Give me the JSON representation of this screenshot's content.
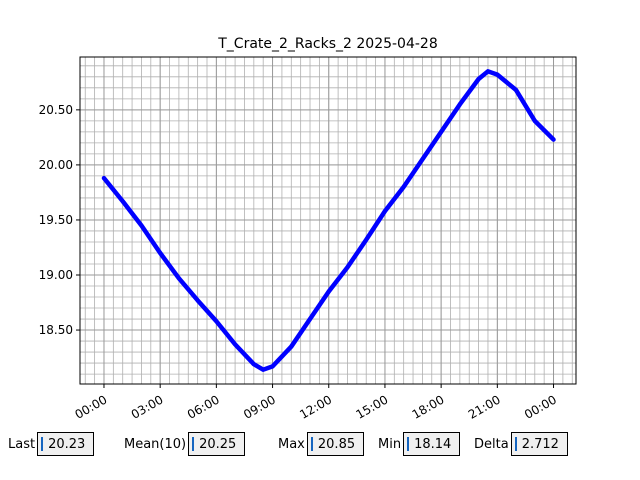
{
  "chart_data": {
    "type": "line",
    "title": "T_Crate_2_Racks_2 2025-04-28",
    "x": [
      0,
      1,
      2,
      3,
      4,
      5,
      6,
      7,
      8,
      8.5,
      9,
      10,
      11,
      12,
      13,
      14,
      15,
      16,
      17,
      18,
      19,
      20,
      20.5,
      21,
      22,
      23,
      24
    ],
    "series": [
      {
        "color": "#0000ff",
        "values": [
          19.88,
          19.67,
          19.45,
          19.2,
          18.97,
          18.77,
          18.58,
          18.37,
          18.19,
          18.14,
          18.17,
          18.35,
          18.6,
          18.85,
          19.07,
          19.32,
          19.58,
          19.8,
          20.05,
          20.3,
          20.55,
          20.78,
          20.85,
          20.82,
          20.68,
          20.4,
          20.23
        ]
      }
    ],
    "xlim": [
      -1.28,
      25.2
    ],
    "ylim": [
      18.01,
      20.98
    ],
    "xticks": [
      {
        "value": 0,
        "label": "00:00"
      },
      {
        "value": 3,
        "label": "03:00"
      },
      {
        "value": 6,
        "label": "06:00"
      },
      {
        "value": 9,
        "label": "09:00"
      },
      {
        "value": 12,
        "label": "12:00"
      },
      {
        "value": 15,
        "label": "15:00"
      },
      {
        "value": 18,
        "label": "18:00"
      },
      {
        "value": 21,
        "label": "21:00"
      },
      {
        "value": 24,
        "label": "00:00"
      }
    ],
    "yticks": [
      {
        "value": 18.5,
        "label": "18.50"
      },
      {
        "value": 19,
        "label": "19.00"
      },
      {
        "value": 19.5,
        "label": "19.50"
      },
      {
        "value": 20,
        "label": "20.00"
      },
      {
        "value": 20.5,
        "label": "20.50"
      }
    ],
    "grid": true,
    "minor_grid": {
      "x_step": 0.5,
      "y_step": 0.1
    }
  },
  "stats": [
    {
      "label": "Last",
      "value": 20.23
    },
    {
      "label": "Mean(10)",
      "value": 20.25
    },
    {
      "label": "Max",
      "value": 20.85
    },
    {
      "label": "Min",
      "value": 18.14
    },
    {
      "label": "Delta",
      "value": 2.712
    }
  ]
}
